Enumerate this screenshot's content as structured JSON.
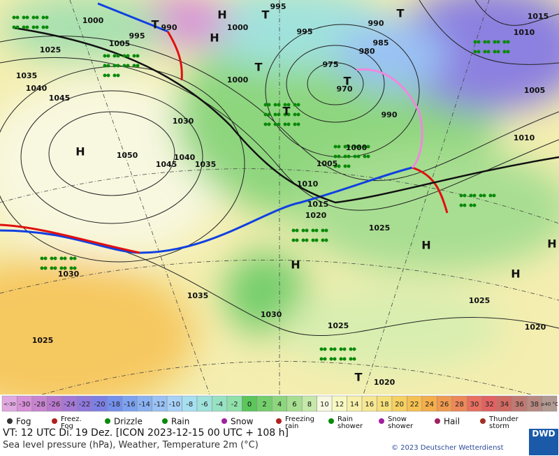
{
  "map": {
    "labels": [
      "H",
      "T",
      "995",
      "T",
      "1015",
      "1000",
      "1000",
      "995",
      "995",
      "990",
      "H",
      "T",
      "990",
      "985",
      "1010",
      "1025",
      "1005",
      "980",
      "975",
      "1035",
      "1040",
      "1000",
      "T",
      "T",
      "970",
      "1005",
      "1045",
      "T",
      "990",
      "1030",
      "1010",
      "H",
      "1050",
      "1040",
      "1045",
      "1035",
      "1000",
      "1005",
      "1010",
      "1015",
      "1020",
      "1025",
      "H",
      "H",
      "H",
      "H",
      "1030",
      "1035",
      "1025",
      "1030",
      "1025",
      "1020",
      "1025",
      "1020",
      "T"
    ]
  },
  "legend": {
    "temperature_scale": [
      {
        "label": "<-30",
        "color": "#e0a8e0"
      },
      {
        "label": "-30",
        "color": "#d890d8"
      },
      {
        "label": "-28",
        "color": "#c884d0"
      },
      {
        "label": "-26",
        "color": "#b878cc"
      },
      {
        "label": "-24",
        "color": "#a478d4"
      },
      {
        "label": "-22",
        "color": "#9078dc"
      },
      {
        "label": "-20",
        "color": "#7c80e4"
      },
      {
        "label": "-18",
        "color": "#7490ec"
      },
      {
        "label": "-16",
        "color": "#7ca2f0"
      },
      {
        "label": "-14",
        "color": "#8ab2f2"
      },
      {
        "label": "-12",
        "color": "#9ac2f4"
      },
      {
        "label": "-10",
        "color": "#a8d2f8"
      },
      {
        "label": "-8",
        "color": "#a6e0f0"
      },
      {
        "label": "-6",
        "color": "#a0e2dc"
      },
      {
        "label": "-4",
        "color": "#98e2c4"
      },
      {
        "label": "-2",
        "color": "#90e0aa"
      },
      {
        "label": "0",
        "color": "#5cc65c"
      },
      {
        "label": "2",
        "color": "#74ce6c"
      },
      {
        "label": "4",
        "color": "#8ed67e"
      },
      {
        "label": "6",
        "color": "#a8de92"
      },
      {
        "label": "8",
        "color": "#c6e8aa"
      },
      {
        "label": "10",
        "color": "#f8f8e2"
      },
      {
        "label": "12",
        "color": "#f8f8c2"
      },
      {
        "label": "14",
        "color": "#f6f0aa"
      },
      {
        "label": "16",
        "color": "#f6e892"
      },
      {
        "label": "18",
        "color": "#f6e07a"
      },
      {
        "label": "20",
        "color": "#f6d062"
      },
      {
        "label": "22",
        "color": "#f6c052"
      },
      {
        "label": "24",
        "color": "#f4ae4a"
      },
      {
        "label": "26",
        "color": "#f09a50"
      },
      {
        "label": "28",
        "color": "#ee8858"
      },
      {
        "label": "30",
        "color": "#e87060"
      },
      {
        "label": "32",
        "color": "#e06262"
      },
      {
        "label": "34",
        "color": "#d06a62"
      },
      {
        "label": "36",
        "color": "#c07a72"
      },
      {
        "label": "38",
        "color": "#b88a82"
      },
      {
        "label": "≥40 °C",
        "color": "#b09a92"
      }
    ],
    "weather": [
      "Fog",
      "Freez. Fog",
      "Drizzle",
      "Rain",
      "Snow",
      "Freezing rain",
      "Rain shower",
      "Snow shower",
      "Hail",
      "Thunder storm"
    ]
  },
  "footer": {
    "valid_time": "VT: 12 UTC Di.  19 Dez. [ICON 2023-12-15  00 UTC + 108 h]",
    "description": "Sea level pressure (hPa), Weather, Temperature 2m (°C)",
    "copyright": "© 2023 Deutscher Wetterdienst",
    "logo": "DWD"
  }
}
